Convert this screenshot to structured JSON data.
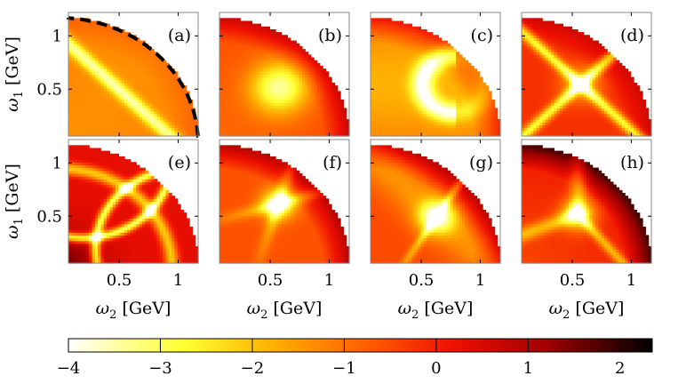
{
  "chart_data": {
    "type": "heatmap",
    "description_of_layout": "2x4 grid of density panels on a quarter-disk domain, shared colorbar",
    "panels": [
      {
        "label": "(a)",
        "pattern": "band",
        "boundary_dashed": true
      },
      {
        "label": "(b)",
        "pattern": "blob"
      },
      {
        "label": "(c)",
        "pattern": "arc"
      },
      {
        "label": "(d)",
        "pattern": "cross"
      },
      {
        "label": "(e)",
        "pattern": "rings"
      },
      {
        "label": "(f)",
        "pattern": "star"
      },
      {
        "label": "(g)",
        "pattern": "star_shift"
      },
      {
        "label": "(h)",
        "pattern": "y"
      }
    ],
    "x_axis": {
      "label_symbol": "ω",
      "label_sub": "2",
      "label_unit": "[GeV]",
      "ticks": [
        0.5,
        1
      ],
      "tick_labels": [
        "0.5",
        "1"
      ],
      "range": [
        0.07,
        1.17
      ]
    },
    "y_axis": {
      "label_symbol": "ω",
      "label_sub": "1",
      "label_unit": "[GeV]",
      "ticks": [
        0.5,
        1
      ],
      "tick_labels": [
        "0.5",
        "1"
      ],
      "range": [
        0.06,
        1.22
      ]
    },
    "domain": {
      "shape": "quarter_disk",
      "radius": 1.18
    },
    "colorbar": {
      "range": [
        -4,
        2.35
      ],
      "ticks": [
        -4,
        -3,
        -2,
        -1,
        0,
        1,
        2
      ],
      "tick_labels": [
        "−4",
        "−3",
        "−2",
        "−1",
        "0",
        "1",
        "2"
      ],
      "colormap": [
        "#ffffff",
        "#ffff40",
        "#ffa000",
        "#ff3000",
        "#c00000",
        "#600000",
        "#000000"
      ]
    }
  }
}
